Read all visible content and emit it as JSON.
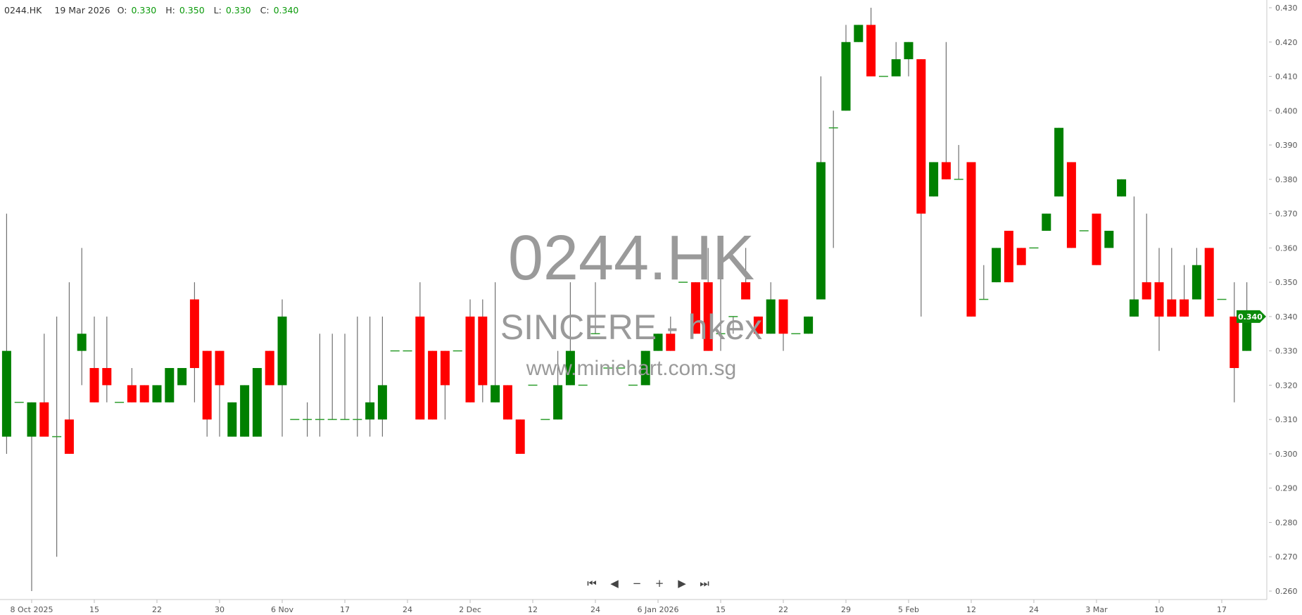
{
  "header": {
    "symbol": "0244.HK",
    "date": "19 Mar 2026",
    "open_label": "O:",
    "open": "0.330",
    "high_label": "H:",
    "high": "0.350",
    "low_label": "L:",
    "low": "0.330",
    "close_label": "C:",
    "close": "0.340"
  },
  "watermark": {
    "symbol": "0244.HK",
    "name": "SINCERE - hkex",
    "site": "www.minichart.com.sg"
  },
  "navigation": [
    {
      "icon": "first-icon",
      "glyph": "⏮"
    },
    {
      "icon": "prev-icon",
      "glyph": "◀"
    },
    {
      "icon": "zoom-out-icon",
      "glyph": "−"
    },
    {
      "icon": "zoom-in-icon",
      "glyph": "+"
    },
    {
      "icon": "next-icon",
      "glyph": "▶"
    },
    {
      "icon": "last-icon",
      "glyph": "⏭"
    }
  ],
  "colors": {
    "up": "#008000",
    "down": "#ff0000",
    "wick": "#707070",
    "doji": "#2e9e2e",
    "last_price": "#0a8a0a"
  },
  "chart_data": {
    "type": "candlestick",
    "title": "",
    "ylim": [
      0.26,
      0.43
    ],
    "yticks": [
      "0.430",
      "0.420",
      "0.410",
      "0.400",
      "0.390",
      "0.380",
      "0.370",
      "0.360",
      "0.350",
      "0.340",
      "0.330",
      "0.320",
      "0.310",
      "0.300",
      "0.290",
      "0.280",
      "0.270",
      "0.260"
    ],
    "xticks": [
      {
        "label": "8 Oct 2025",
        "index": 2
      },
      {
        "label": "15",
        "index": 7
      },
      {
        "label": "22",
        "index": 12
      },
      {
        "label": "30",
        "index": 17
      },
      {
        "label": "6 Nov",
        "index": 22
      },
      {
        "label": "17",
        "index": 27
      },
      {
        "label": "24",
        "index": 32
      },
      {
        "label": "2 Dec",
        "index": 37
      },
      {
        "label": "12",
        "index": 42
      },
      {
        "label": "24",
        "index": 47
      },
      {
        "label": "6 Jan 2026",
        "index": 52
      },
      {
        "label": "15",
        "index": 57
      },
      {
        "label": "22",
        "index": 62
      },
      {
        "label": "29",
        "index": 67
      },
      {
        "label": "5 Feb",
        "index": 72
      },
      {
        "label": "12",
        "index": 77
      },
      {
        "label": "24",
        "index": 82
      },
      {
        "label": "3 Mar",
        "index": 87
      },
      {
        "label": "10",
        "index": 92
      },
      {
        "label": "17",
        "index": 97
      }
    ],
    "last_price": "0.340",
    "ohlc_fields": [
      "open",
      "high",
      "low",
      "close"
    ],
    "candles": [
      [
        0.305,
        0.37,
        0.3,
        0.33
      ],
      [
        0.315,
        0.315,
        0.315,
        0.315
      ],
      [
        0.305,
        0.315,
        0.26,
        0.315
      ],
      [
        0.315,
        0.335,
        0.305,
        0.305
      ],
      [
        0.305,
        0.34,
        0.27,
        0.305
      ],
      [
        0.31,
        0.35,
        0.3,
        0.3
      ],
      [
        0.33,
        0.36,
        0.32,
        0.335
      ],
      [
        0.325,
        0.34,
        0.315,
        0.315
      ],
      [
        0.325,
        0.34,
        0.315,
        0.32
      ],
      [
        0.315,
        0.315,
        0.315,
        0.315
      ],
      [
        0.32,
        0.325,
        0.315,
        0.315
      ],
      [
        0.32,
        0.32,
        0.315,
        0.315
      ],
      [
        0.315,
        0.32,
        0.315,
        0.32
      ],
      [
        0.315,
        0.325,
        0.315,
        0.325
      ],
      [
        0.32,
        0.325,
        0.32,
        0.325
      ],
      [
        0.345,
        0.35,
        0.315,
        0.325
      ],
      [
        0.33,
        0.33,
        0.305,
        0.31
      ],
      [
        0.33,
        0.33,
        0.305,
        0.32
      ],
      [
        0.305,
        0.315,
        0.305,
        0.315
      ],
      [
        0.305,
        0.32,
        0.305,
        0.32
      ],
      [
        0.305,
        0.325,
        0.305,
        0.325
      ],
      [
        0.33,
        0.33,
        0.32,
        0.32
      ],
      [
        0.32,
        0.345,
        0.305,
        0.34
      ],
      [
        0.31,
        0.31,
        0.31,
        0.31
      ],
      [
        0.31,
        0.315,
        0.305,
        0.31
      ],
      [
        0.31,
        0.335,
        0.305,
        0.31
      ],
      [
        0.31,
        0.335,
        0.31,
        0.31
      ],
      [
        0.31,
        0.335,
        0.31,
        0.31
      ],
      [
        0.31,
        0.34,
        0.305,
        0.31
      ],
      [
        0.31,
        0.34,
        0.305,
        0.315
      ],
      [
        0.31,
        0.34,
        0.305,
        0.32
      ],
      [
        0.33,
        0.33,
        0.33,
        0.33
      ],
      [
        0.33,
        0.33,
        0.33,
        0.33
      ],
      [
        0.34,
        0.35,
        0.31,
        0.31
      ],
      [
        0.33,
        0.33,
        0.31,
        0.31
      ],
      [
        0.33,
        0.33,
        0.31,
        0.32
      ],
      [
        0.33,
        0.33,
        0.33,
        0.33
      ],
      [
        0.34,
        0.345,
        0.315,
        0.315
      ],
      [
        0.34,
        0.345,
        0.315,
        0.32
      ],
      [
        0.315,
        0.35,
        0.315,
        0.32
      ],
      [
        0.32,
        0.32,
        0.31,
        0.31
      ],
      [
        0.31,
        0.31,
        0.3,
        0.3
      ],
      [
        0.32,
        0.32,
        0.32,
        0.32
      ],
      [
        0.31,
        0.31,
        0.31,
        0.31
      ],
      [
        0.31,
        0.33,
        0.31,
        0.32
      ],
      [
        0.32,
        0.35,
        0.32,
        0.33
      ],
      [
        0.32,
        0.32,
        0.32,
        0.32
      ],
      [
        0.335,
        0.35,
        0.335,
        0.335
      ],
      [
        0.325,
        0.325,
        0.325,
        0.325
      ],
      [
        0.325,
        0.325,
        0.325,
        0.325
      ],
      [
        0.32,
        0.32,
        0.32,
        0.32
      ],
      [
        0.32,
        0.33,
        0.32,
        0.33
      ],
      [
        0.33,
        0.335,
        0.33,
        0.335
      ],
      [
        0.335,
        0.34,
        0.33,
        0.33
      ],
      [
        0.35,
        0.35,
        0.35,
        0.35
      ],
      [
        0.35,
        0.35,
        0.335,
        0.335
      ],
      [
        0.35,
        0.36,
        0.33,
        0.33
      ],
      [
        0.335,
        0.36,
        0.33,
        0.335
      ],
      [
        0.34,
        0.34,
        0.335,
        0.34
      ],
      [
        0.35,
        0.36,
        0.345,
        0.345
      ],
      [
        0.34,
        0.34,
        0.335,
        0.335
      ],
      [
        0.335,
        0.35,
        0.335,
        0.345
      ],
      [
        0.345,
        0.345,
        0.33,
        0.335
      ],
      [
        0.335,
        0.335,
        0.335,
        0.335
      ],
      [
        0.335,
        0.34,
        0.335,
        0.34
      ],
      [
        0.345,
        0.41,
        0.345,
        0.385
      ],
      [
        0.395,
        0.4,
        0.36,
        0.395
      ],
      [
        0.4,
        0.425,
        0.4,
        0.42
      ],
      [
        0.42,
        0.425,
        0.42,
        0.425
      ],
      [
        0.425,
        0.43,
        0.41,
        0.41
      ],
      [
        0.41,
        0.41,
        0.41,
        0.41
      ],
      [
        0.41,
        0.42,
        0.41,
        0.415
      ],
      [
        0.415,
        0.42,
        0.41,
        0.42
      ],
      [
        0.415,
        0.415,
        0.34,
        0.37
      ],
      [
        0.375,
        0.385,
        0.375,
        0.385
      ],
      [
        0.385,
        0.42,
        0.38,
        0.38
      ],
      [
        0.38,
        0.39,
        0.38,
        0.38
      ],
      [
        0.385,
        0.385,
        0.34,
        0.34
      ],
      [
        0.345,
        0.355,
        0.345,
        0.345
      ],
      [
        0.35,
        0.36,
        0.35,
        0.36
      ],
      [
        0.365,
        0.365,
        0.35,
        0.35
      ],
      [
        0.36,
        0.36,
        0.355,
        0.355
      ],
      [
        0.36,
        0.36,
        0.36,
        0.36
      ],
      [
        0.365,
        0.37,
        0.365,
        0.37
      ],
      [
        0.375,
        0.395,
        0.375,
        0.395
      ],
      [
        0.385,
        0.385,
        0.36,
        0.36
      ],
      [
        0.365,
        0.365,
        0.365,
        0.365
      ],
      [
        0.37,
        0.37,
        0.355,
        0.355
      ],
      [
        0.36,
        0.365,
        0.36,
        0.365
      ],
      [
        0.375,
        0.38,
        0.375,
        0.38
      ],
      [
        0.34,
        0.375,
        0.34,
        0.345
      ],
      [
        0.35,
        0.37,
        0.345,
        0.345
      ],
      [
        0.35,
        0.36,
        0.33,
        0.34
      ],
      [
        0.345,
        0.36,
        0.34,
        0.34
      ],
      [
        0.345,
        0.355,
        0.34,
        0.34
      ],
      [
        0.345,
        0.36,
        0.345,
        0.355
      ],
      [
        0.36,
        0.36,
        0.34,
        0.34
      ],
      [
        0.345,
        0.345,
        0.345,
        0.345
      ],
      [
        0.34,
        0.35,
        0.315,
        0.325
      ],
      [
        0.33,
        0.35,
        0.33,
        0.34
      ]
    ]
  }
}
